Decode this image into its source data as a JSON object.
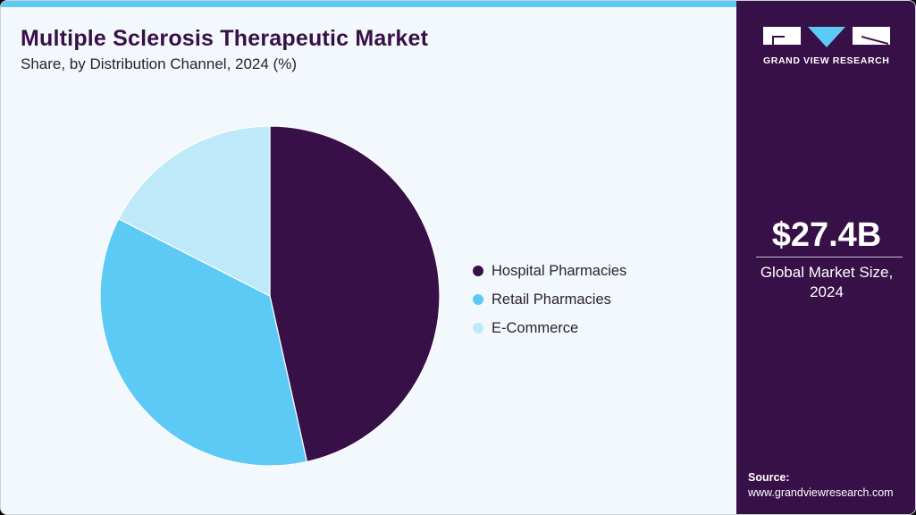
{
  "header": {
    "title": "Multiple Sclerosis Therapeutic Market",
    "subtitle": "Share, by Distribution Channel, 2024 (%)"
  },
  "brand": {
    "logo_text": "GRAND VIEW RESEARCH",
    "logo_icon": "gvr-logo-icon"
  },
  "stat": {
    "value": "$27.4B",
    "caption_line1": "Global Market Size,",
    "caption_line2": "2024"
  },
  "source": {
    "label": "Source:",
    "url": "www.grandviewresearch.com"
  },
  "colors": {
    "accent_bar": "#5dc9f5",
    "sidebar": "#371048",
    "background": "#f3f8fc"
  },
  "legend": [
    {
      "label": "Hospital Pharmacies",
      "color": "#371048"
    },
    {
      "label": "Retail Pharmacies",
      "color": "#5dc9f5"
    },
    {
      "label": "E-Commerce",
      "color": "#bde9f9"
    }
  ],
  "chart_data": {
    "type": "pie",
    "title": "Multiple Sclerosis Therapeutic Market",
    "subtitle": "Share, by Distribution Channel, 2024 (%)",
    "categories": [
      "Hospital Pharmacies",
      "Retail Pharmacies",
      "E-Commerce"
    ],
    "values": [
      46.5,
      36.0,
      17.5
    ],
    "colors": [
      "#371048",
      "#5dc9f5",
      "#bde9f9"
    ],
    "start_angle": "12 o'clock, clockwise",
    "legend_position": "right",
    "data_labels": false
  }
}
